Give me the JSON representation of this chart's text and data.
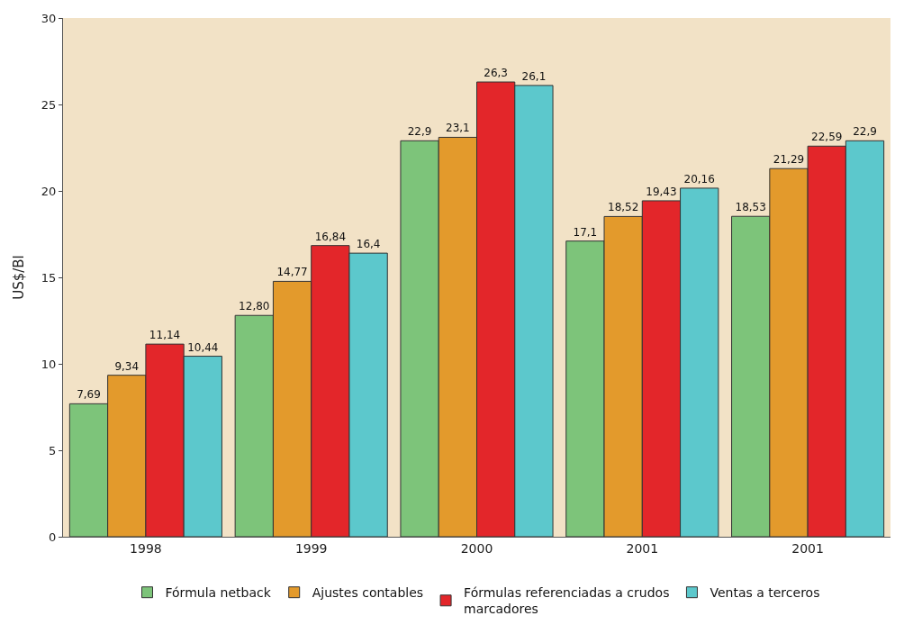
{
  "chart_data": {
    "type": "bar",
    "ylabel": "US$/Bl",
    "categories": [
      "1998",
      "1999",
      "2000",
      "2001",
      "2001"
    ],
    "series": [
      {
        "name": "Fórmula netback",
        "color": "#7dc47a",
        "values": [
          7.69,
          12.8,
          22.9,
          17.1,
          18.53
        ],
        "value_labels": [
          "7,69",
          "12,80",
          "22,9",
          "17,1",
          "18,53"
        ]
      },
      {
        "name": "Ajustes contables",
        "color": "#e39a2c",
        "values": [
          9.34,
          14.77,
          23.1,
          18.52,
          21.29
        ],
        "value_labels": [
          "9,34",
          "14,77",
          "23,1",
          "18,52",
          "21,29"
        ]
      },
      {
        "name": "Fórmulas referenciadas a crudos marcadores",
        "color": "#e3262a",
        "values": [
          11.14,
          16.84,
          26.3,
          19.43,
          22.59
        ],
        "value_labels": [
          "11,14",
          "16,84",
          "26,3",
          "19,43",
          "22,59"
        ]
      },
      {
        "name": "Ventas a terceros",
        "color": "#5cc8cc",
        "values": [
          10.44,
          16.4,
          26.1,
          20.16,
          22.9
        ],
        "value_labels": [
          "10,44",
          "16,4",
          "26,1",
          "20,16",
          "22,9"
        ]
      }
    ],
    "ylim": [
      0,
      30
    ],
    "yticks": [
      0,
      5,
      10,
      15,
      20,
      25,
      30
    ],
    "grid": false,
    "legend": "bottom"
  }
}
